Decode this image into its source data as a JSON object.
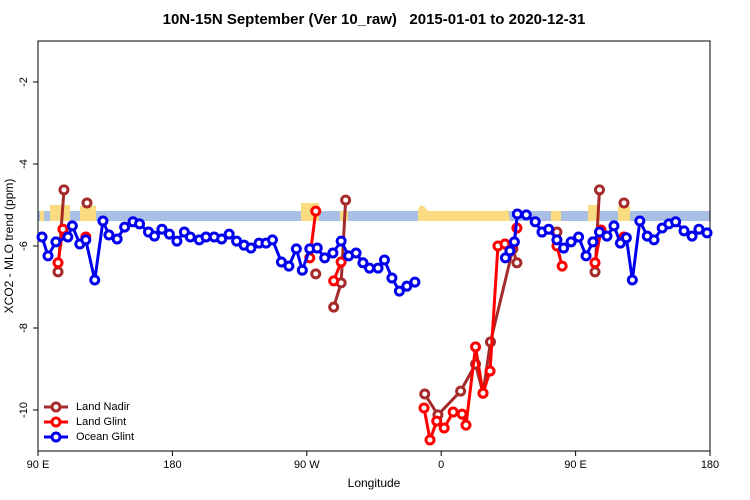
{
  "chart_data": {
    "type": "line",
    "title": "10N-15N September (Ver 10_raw)   2015-01-01 to 2020-12-31",
    "xlabel": "Longitude",
    "ylabel": "XCO2 - MLO trend (ppm)",
    "xlim": [
      90,
      540
    ],
    "xticks": [
      {
        "value": 90,
        "label": "90 E"
      },
      180,
      {
        "value": 270,
        "label": "90 W"
      },
      {
        "value": 360,
        "label": "0"
      },
      {
        "value": 450,
        "label": "90 E"
      },
      180
    ],
    "ylim": [
      -11,
      -1
    ],
    "yticks": [
      -10,
      -8,
      -6,
      -4,
      -2
    ],
    "legend": "bottom-left",
    "series": [
      {
        "name": "Land Nadir",
        "color": "#a52a2a",
        "x": [
          103.4,
          107.4,
          null,
          122.8,
          null,
          276,
          null,
          288,
          293,
          296,
          null,
          349,
          357.8,
          373,
          383,
          388,
          393,
          408,
          410.7,
          null,
          437.5,
          null,
          463,
          466,
          null,
          482.4
        ],
        "values": [
          -6.63,
          -4.63,
          null,
          -4.95,
          null,
          -6.68,
          null,
          -7.49,
          -6.9,
          -4.88,
          null,
          -9.61,
          -10.12,
          -9.54,
          -8.88,
          -9.59,
          -8.34,
          -6.07,
          -6.41,
          null,
          -5.66,
          null,
          -6.63,
          -4.63,
          null,
          -4.95
        ]
      },
      {
        "name": "Land Glint",
        "color": "#ff0000",
        "x": [
          103.4,
          106.7,
          null,
          122,
          null,
          272,
          276,
          null,
          288,
          293,
          null,
          348.5,
          352.5,
          357,
          362,
          368,
          374,
          376.6,
          383,
          388,
          392.7,
          398,
          402.7,
          408,
          410.7,
          null,
          437.5,
          441,
          null,
          463,
          467,
          null,
          482.4
        ],
        "values": [
          -6.41,
          -5.59,
          null,
          -5.78,
          null,
          -6.29,
          -5.15,
          null,
          -6.85,
          -6.39,
          null,
          -9.95,
          -10.73,
          -10.27,
          -10.44,
          -10.05,
          -10.1,
          -10.37,
          -8.46,
          -9.59,
          -9.05,
          -6.0,
          -5.95,
          -5.95,
          -5.56,
          null,
          -6.0,
          -6.49,
          null,
          -6.41,
          -5.61,
          null,
          -5.78
        ]
      },
      {
        "name": "Ocean Glint",
        "color": "#0000ee",
        "x": [
          92.7,
          96.7,
          102,
          110,
          113,
          118,
          122,
          128,
          133.5,
          137.5,
          143,
          148,
          153.6,
          158,
          164,
          168,
          173,
          178,
          183,
          188,
          192,
          198,
          202.5,
          208,
          213,
          218,
          223,
          228,
          232.6,
          238,
          242.7,
          247,
          253,
          258,
          263,
          267,
          272,
          277,
          282,
          287.5,
          293,
          298,
          303,
          307.6,
          312,
          317.7,
          322,
          327,
          332,
          337,
          342.4,
          null,
          403,
          406,
          409,
          411,
          417,
          423,
          427.5,
          432,
          437.5,
          442,
          447,
          452,
          457,
          461.6,
          466,
          471,
          475.7,
          480,
          484,
          488,
          493,
          498,
          502.5,
          508,
          512.5,
          517,
          522.6,
          528,
          532.6,
          538
        ],
        "values": [
          -5.78,
          -6.24,
          -5.9,
          -5.78,
          -5.51,
          -5.95,
          -5.85,
          -6.83,
          -5.39,
          -5.73,
          -5.83,
          -5.54,
          -5.41,
          -5.46,
          -5.66,
          -5.76,
          -5.59,
          -5.71,
          -5.88,
          -5.66,
          -5.78,
          -5.85,
          -5.78,
          -5.78,
          -5.83,
          -5.71,
          -5.88,
          -5.98,
          -6.05,
          -5.93,
          -5.93,
          -5.85,
          -6.39,
          -6.49,
          -6.07,
          -6.59,
          -6.07,
          -6.05,
          -6.29,
          -6.17,
          -5.88,
          -6.24,
          -6.17,
          -6.41,
          -6.54,
          -6.54,
          -6.34,
          -6.78,
          -7.1,
          -6.98,
          -6.88,
          null,
          -6.29,
          -6.12,
          -5.9,
          -5.22,
          -5.24,
          -5.41,
          -5.66,
          -5.59,
          -5.85,
          -6.05,
          -5.9,
          -5.78,
          -6.24,
          -5.9,
          -5.66,
          -5.76,
          -5.51,
          -5.93,
          -5.8,
          -6.83,
          -5.39,
          -5.76,
          -5.85,
          -5.56,
          -5.46,
          -5.41,
          -5.63,
          -5.76,
          -5.59,
          -5.68
        ]
      }
    ]
  }
}
